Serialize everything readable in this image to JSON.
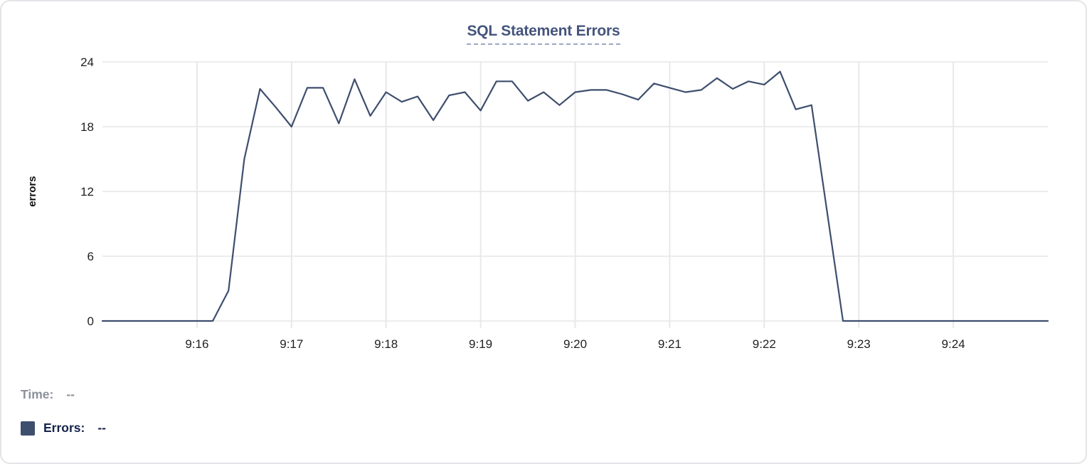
{
  "card": {
    "title": "SQL Statement Errors"
  },
  "legend": {
    "time_label": "Time:",
    "time_value": "--",
    "errors_label": "Errors:",
    "errors_value": "--"
  },
  "colors": {
    "series": "#3e4e6e",
    "title": "#44547c",
    "title_underline": "#9aa8c4",
    "grid_horizontal": "#ececec",
    "grid_vertical": "#e8e8e8",
    "tick_text": "#1f1f1f",
    "axis_label": "#111111",
    "legend_time": "#8b909a",
    "legend_errors": "#16244a",
    "card_border": "#e3e4e7"
  },
  "chart_data": {
    "type": "line",
    "title": "SQL Statement Errors",
    "xlabel": "",
    "ylabel": "errors",
    "ylim": [
      0,
      24
    ],
    "y_ticks": [
      0,
      6,
      12,
      18,
      24
    ],
    "x_ticks": [
      "9:16",
      "9:17",
      "9:18",
      "9:19",
      "9:20",
      "9:21",
      "9:22",
      "9:23",
      "9:24"
    ],
    "x_range_minutes": [
      "9:15:00",
      "9:25:00"
    ],
    "grid": true,
    "legend_position": "bottom-left",
    "series": [
      {
        "name": "Errors",
        "color": "#3e4e6e",
        "points": [
          [
            "9:15:00",
            0
          ],
          [
            "9:15:10",
            0
          ],
          [
            "9:15:20",
            0
          ],
          [
            "9:15:30",
            0
          ],
          [
            "9:15:40",
            0
          ],
          [
            "9:15:50",
            0
          ],
          [
            "9:16:00",
            0
          ],
          [
            "9:16:10",
            0
          ],
          [
            "9:16:20",
            2.8
          ],
          [
            "9:16:30",
            15
          ],
          [
            "9:16:40",
            21.5
          ],
          [
            "9:16:50",
            19.8
          ],
          [
            "9:17:00",
            18
          ],
          [
            "9:17:10",
            21.6
          ],
          [
            "9:17:20",
            21.6
          ],
          [
            "9:17:30",
            18.3
          ],
          [
            "9:17:40",
            22.4
          ],
          [
            "9:17:50",
            19
          ],
          [
            "9:18:00",
            21.2
          ],
          [
            "9:18:10",
            20.3
          ],
          [
            "9:18:20",
            20.8
          ],
          [
            "9:18:30",
            18.6
          ],
          [
            "9:18:40",
            20.9
          ],
          [
            "9:18:50",
            21.2
          ],
          [
            "9:19:00",
            19.5
          ],
          [
            "9:19:10",
            22.2
          ],
          [
            "9:19:20",
            22.2
          ],
          [
            "9:19:30",
            20.4
          ],
          [
            "9:19:40",
            21.2
          ],
          [
            "9:19:50",
            20
          ],
          [
            "9:20:00",
            21.2
          ],
          [
            "9:20:10",
            21.4
          ],
          [
            "9:20:20",
            21.4
          ],
          [
            "9:20:30",
            21
          ],
          [
            "9:20:40",
            20.5
          ],
          [
            "9:20:50",
            22
          ],
          [
            "9:21:00",
            21.6
          ],
          [
            "9:21:10",
            21.2
          ],
          [
            "9:21:20",
            21.4
          ],
          [
            "9:21:30",
            22.5
          ],
          [
            "9:21:40",
            21.5
          ],
          [
            "9:21:50",
            22.2
          ],
          [
            "9:22:00",
            21.9
          ],
          [
            "9:22:10",
            23.1
          ],
          [
            "9:22:20",
            19.6
          ],
          [
            "9:22:30",
            20
          ],
          [
            "9:22:40",
            10
          ],
          [
            "9:22:50",
            0
          ],
          [
            "9:23:00",
            0
          ],
          [
            "9:23:10",
            0
          ],
          [
            "9:23:20",
            0
          ],
          [
            "9:23:30",
            0
          ],
          [
            "9:23:40",
            0
          ],
          [
            "9:23:50",
            0
          ],
          [
            "9:24:00",
            0
          ],
          [
            "9:24:10",
            0
          ],
          [
            "9:24:20",
            0
          ],
          [
            "9:24:30",
            0
          ],
          [
            "9:24:40",
            0
          ],
          [
            "9:24:50",
            0
          ],
          [
            "9:25:00",
            0
          ]
        ]
      }
    ]
  }
}
